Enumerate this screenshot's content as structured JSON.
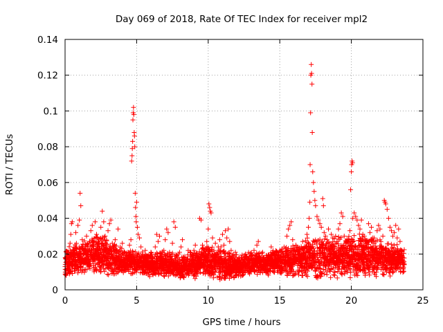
{
  "chart_data": {
    "type": "scatter",
    "title": "Day 069 of 2018, Rate Of TEC Index for receiver mpl2",
    "xlabel": "GPS time / hours",
    "ylabel": "ROTI / TECUs",
    "xlim": [
      0,
      25
    ],
    "ylim": [
      0,
      0.14
    ],
    "x_ticks": [
      "0",
      "5",
      "10",
      "15",
      "20",
      "25"
    ],
    "y_ticks": [
      "0",
      "0.02",
      "0.04",
      "0.06",
      "0.08",
      "0.1",
      "0.12",
      "0.14"
    ],
    "grid": true,
    "marker": "+",
    "color": "#ff0000",
    "series": [
      {
        "name": "ROTI",
        "points": [
          [
            0.0,
            0.013
          ],
          [
            0.1,
            0.009
          ],
          [
            0.15,
            0.018
          ],
          [
            0.2,
            0.021
          ],
          [
            0.3,
            0.015
          ],
          [
            0.35,
            0.026
          ],
          [
            0.4,
            0.031
          ],
          [
            0.45,
            0.037
          ],
          [
            0.5,
            0.038
          ],
          [
            0.55,
            0.022
          ],
          [
            0.6,
            0.017
          ],
          [
            0.7,
            0.012
          ],
          [
            0.75,
            0.032
          ],
          [
            0.8,
            0.024
          ],
          [
            0.9,
            0.036
          ],
          [
            0.95,
            0.019
          ],
          [
            1.0,
            0.039
          ],
          [
            1.05,
            0.054
          ],
          [
            1.1,
            0.047
          ],
          [
            1.2,
            0.028
          ],
          [
            1.3,
            0.016
          ],
          [
            1.4,
            0.022
          ],
          [
            1.5,
            0.03
          ],
          [
            1.6,
            0.025
          ],
          [
            1.7,
            0.013
          ],
          [
            1.8,
            0.033
          ],
          [
            1.9,
            0.036
          ],
          [
            2.0,
            0.018
          ],
          [
            2.1,
            0.038
          ],
          [
            2.2,
            0.031
          ],
          [
            2.3,
            0.027
          ],
          [
            2.4,
            0.015
          ],
          [
            2.5,
            0.035
          ],
          [
            2.6,
            0.044
          ],
          [
            2.7,
            0.038
          ],
          [
            2.8,
            0.03
          ],
          [
            2.9,
            0.021
          ],
          [
            3.0,
            0.033
          ],
          [
            3.1,
            0.037
          ],
          [
            3.2,
            0.039
          ],
          [
            3.3,
            0.026
          ],
          [
            3.4,
            0.018
          ],
          [
            3.5,
            0.028
          ],
          [
            3.6,
            0.022
          ],
          [
            3.7,
            0.034
          ],
          [
            3.8,
            0.017
          ],
          [
            3.9,
            0.02
          ],
          [
            4.0,
            0.026
          ],
          [
            4.1,
            0.015
          ],
          [
            4.2,
            0.019
          ],
          [
            4.3,
            0.014
          ],
          [
            4.4,
            0.021
          ],
          [
            4.5,
            0.025
          ],
          [
            4.6,
            0.028
          ],
          [
            4.65,
            0.072
          ],
          [
            4.68,
            0.075
          ],
          [
            4.7,
            0.079
          ],
          [
            4.72,
            0.083
          ],
          [
            4.74,
            0.095
          ],
          [
            4.76,
            0.099
          ],
          [
            4.78,
            0.102
          ],
          [
            4.8,
            0.098
          ],
          [
            4.83,
            0.088
          ],
          [
            4.85,
            0.086
          ],
          [
            4.87,
            0.08
          ],
          [
            4.9,
            0.054
          ],
          [
            4.92,
            0.046
          ],
          [
            4.95,
            0.041
          ],
          [
            4.97,
            0.038
          ],
          [
            5.0,
            0.049
          ],
          [
            5.05,
            0.035
          ],
          [
            5.1,
            0.031
          ],
          [
            5.2,
            0.029
          ],
          [
            5.3,
            0.024
          ],
          [
            5.4,
            0.02
          ],
          [
            5.5,
            0.018
          ],
          [
            5.6,
            0.022
          ],
          [
            5.7,
            0.016
          ],
          [
            5.8,
            0.019
          ],
          [
            5.9,
            0.014
          ],
          [
            6.0,
            0.021
          ],
          [
            6.1,
            0.018
          ],
          [
            6.2,
            0.015
          ],
          [
            6.3,
            0.024
          ],
          [
            6.4,
            0.031
          ],
          [
            6.5,
            0.027
          ],
          [
            6.6,
            0.03
          ],
          [
            6.7,
            0.019
          ],
          [
            6.8,
            0.013
          ],
          [
            6.9,
            0.022
          ],
          [
            7.0,
            0.028
          ],
          [
            7.1,
            0.034
          ],
          [
            7.2,
            0.032
          ],
          [
            7.3,
            0.021
          ],
          [
            7.4,
            0.017
          ],
          [
            7.5,
            0.026
          ],
          [
            7.6,
            0.038
          ],
          [
            7.7,
            0.035
          ],
          [
            7.8,
            0.019
          ],
          [
            7.9,
            0.015
          ],
          [
            8.0,
            0.021
          ],
          [
            8.1,
            0.024
          ],
          [
            8.2,
            0.028
          ],
          [
            8.3,
            0.018
          ],
          [
            8.4,
            0.014
          ],
          [
            8.5,
            0.017
          ],
          [
            8.6,
            0.022
          ],
          [
            8.7,
            0.016
          ],
          [
            8.8,
            0.013
          ],
          [
            8.9,
            0.019
          ],
          [
            9.0,
            0.022
          ],
          [
            9.1,
            0.025
          ],
          [
            9.2,
            0.018
          ],
          [
            9.3,
            0.016
          ],
          [
            9.4,
            0.04
          ],
          [
            9.5,
            0.039
          ],
          [
            9.6,
            0.025
          ],
          [
            9.7,
            0.021
          ],
          [
            9.8,
            0.017
          ],
          [
            9.9,
            0.027
          ],
          [
            10.0,
            0.034
          ],
          [
            10.05,
            0.048
          ],
          [
            10.1,
            0.046
          ],
          [
            10.15,
            0.044
          ],
          [
            10.2,
            0.043
          ],
          [
            10.3,
            0.029
          ],
          [
            10.4,
            0.022
          ],
          [
            10.5,
            0.026
          ],
          [
            10.6,
            0.02
          ],
          [
            10.7,
            0.024
          ],
          [
            10.8,
            0.028
          ],
          [
            10.9,
            0.021
          ],
          [
            11.0,
            0.031
          ],
          [
            11.1,
            0.025
          ],
          [
            11.2,
            0.033
          ],
          [
            11.3,
            0.029
          ],
          [
            11.4,
            0.034
          ],
          [
            11.5,
            0.027
          ],
          [
            11.6,
            0.022
          ],
          [
            11.7,
            0.019
          ],
          [
            11.8,
            0.017
          ],
          [
            11.9,
            0.021
          ],
          [
            12.0,
            0.015
          ],
          [
            12.2,
            0.018
          ],
          [
            12.4,
            0.013
          ],
          [
            12.6,
            0.02
          ],
          [
            12.8,
            0.016
          ],
          [
            13.0,
            0.019
          ],
          [
            13.2,
            0.022
          ],
          [
            13.4,
            0.025
          ],
          [
            13.5,
            0.027
          ],
          [
            13.6,
            0.018
          ],
          [
            13.8,
            0.021
          ],
          [
            14.0,
            0.015
          ],
          [
            14.2,
            0.019
          ],
          [
            14.4,
            0.024
          ],
          [
            14.6,
            0.02
          ],
          [
            14.8,
            0.017
          ],
          [
            15.0,
            0.022
          ],
          [
            15.2,
            0.018
          ],
          [
            15.4,
            0.023
          ],
          [
            15.5,
            0.03
          ],
          [
            15.6,
            0.034
          ],
          [
            15.7,
            0.036
          ],
          [
            15.8,
            0.038
          ],
          [
            15.9,
            0.028
          ],
          [
            16.0,
            0.022
          ],
          [
            16.2,
            0.024
          ],
          [
            16.4,
            0.02
          ],
          [
            16.6,
            0.027
          ],
          [
            16.8,
            0.024
          ],
          [
            16.9,
            0.031
          ],
          [
            17.0,
            0.035
          ],
          [
            17.05,
            0.04
          ],
          [
            17.1,
            0.049
          ],
          [
            17.12,
            0.07
          ],
          [
            17.15,
            0.099
          ],
          [
            17.17,
            0.12
          ],
          [
            17.2,
            0.126
          ],
          [
            17.22,
            0.121
          ],
          [
            17.25,
            0.115
          ],
          [
            17.27,
            0.088
          ],
          [
            17.3,
            0.066
          ],
          [
            17.35,
            0.06
          ],
          [
            17.4,
            0.055
          ],
          [
            17.45,
            0.05
          ],
          [
            17.5,
            0.047
          ],
          [
            17.6,
            0.041
          ],
          [
            17.7,
            0.039
          ],
          [
            17.8,
            0.037
          ],
          [
            17.9,
            0.035
          ],
          [
            18.0,
            0.051
          ],
          [
            18.05,
            0.047
          ],
          [
            18.1,
            0.032
          ],
          [
            18.2,
            0.03
          ],
          [
            18.3,
            0.028
          ],
          [
            18.4,
            0.034
          ],
          [
            18.5,
            0.026
          ],
          [
            18.6,
            0.031
          ],
          [
            18.7,
            0.029
          ],
          [
            18.8,
            0.024
          ],
          [
            18.9,
            0.03
          ],
          [
            19.0,
            0.027
          ],
          [
            19.1,
            0.034
          ],
          [
            19.2,
            0.037
          ],
          [
            19.3,
            0.043
          ],
          [
            19.4,
            0.041
          ],
          [
            19.5,
            0.03
          ],
          [
            19.6,
            0.026
          ],
          [
            19.7,
            0.022
          ],
          [
            19.8,
            0.028
          ],
          [
            19.9,
            0.033
          ],
          [
            19.95,
            0.056
          ],
          [
            20.0,
            0.066
          ],
          [
            20.02,
            0.07
          ],
          [
            20.05,
            0.072
          ],
          [
            20.08,
            0.071
          ],
          [
            20.1,
            0.04
          ],
          [
            20.2,
            0.043
          ],
          [
            20.3,
            0.041
          ],
          [
            20.4,
            0.039
          ],
          [
            20.5,
            0.036
          ],
          [
            20.6,
            0.034
          ],
          [
            20.7,
            0.039
          ],
          [
            20.8,
            0.031
          ],
          [
            20.9,
            0.03
          ],
          [
            21.0,
            0.028
          ],
          [
            21.1,
            0.026
          ],
          [
            21.2,
            0.037
          ],
          [
            21.3,
            0.032
          ],
          [
            21.4,
            0.035
          ],
          [
            21.5,
            0.029
          ],
          [
            21.6,
            0.026
          ],
          [
            21.7,
            0.027
          ],
          [
            21.8,
            0.033
          ],
          [
            21.9,
            0.036
          ],
          [
            22.0,
            0.034
          ],
          [
            22.1,
            0.024
          ],
          [
            22.2,
            0.03
          ],
          [
            22.3,
            0.05
          ],
          [
            22.35,
            0.049
          ],
          [
            22.4,
            0.048
          ],
          [
            22.5,
            0.045
          ],
          [
            22.6,
            0.04
          ],
          [
            22.7,
            0.035
          ],
          [
            22.8,
            0.033
          ],
          [
            22.9,
            0.03
          ],
          [
            23.0,
            0.032
          ],
          [
            23.1,
            0.036
          ],
          [
            23.2,
            0.029
          ],
          [
            23.3,
            0.034
          ],
          [
            23.4,
            0.027
          ],
          [
            23.5,
            0.022
          ],
          [
            23.6,
            0.018
          ],
          [
            23.7,
            0.014
          ]
        ],
        "band": {
          "description": "dense background cloud of ROTI measurements",
          "segments": [
            [
              0.0,
              0.006,
              0.024
            ],
            [
              1.0,
              0.009,
              0.027
            ],
            [
              2.0,
              0.008,
              0.032
            ],
            [
              3.0,
              0.007,
              0.03
            ],
            [
              4.0,
              0.007,
              0.024
            ],
            [
              5.0,
              0.008,
              0.022
            ],
            [
              6.0,
              0.007,
              0.022
            ],
            [
              7.0,
              0.007,
              0.022
            ],
            [
              8.0,
              0.006,
              0.02
            ],
            [
              9.0,
              0.006,
              0.022
            ],
            [
              10.0,
              0.006,
              0.026
            ],
            [
              11.0,
              0.005,
              0.024
            ],
            [
              12.0,
              0.006,
              0.02
            ],
            [
              13.0,
              0.008,
              0.022
            ],
            [
              14.0,
              0.008,
              0.022
            ],
            [
              15.0,
              0.008,
              0.024
            ],
            [
              16.0,
              0.007,
              0.026
            ],
            [
              17.0,
              0.006,
              0.03
            ],
            [
              18.0,
              0.006,
              0.03
            ],
            [
              19.0,
              0.006,
              0.03
            ],
            [
              20.0,
              0.006,
              0.032
            ],
            [
              21.0,
              0.006,
              0.032
            ],
            [
              22.0,
              0.006,
              0.03
            ],
            [
              23.0,
              0.008,
              0.026
            ],
            [
              23.7,
              0.009,
              0.024
            ]
          ]
        }
      }
    ]
  }
}
